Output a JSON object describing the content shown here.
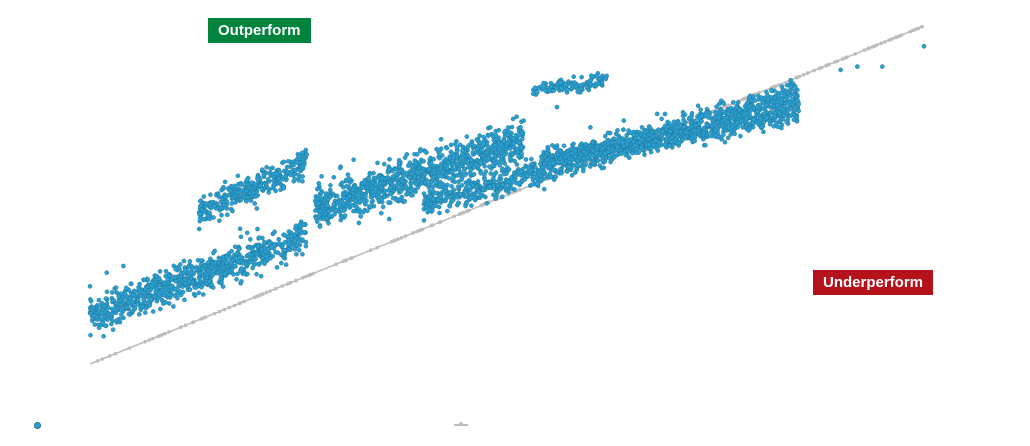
{
  "badges": {
    "outperform": {
      "text": "Outperform",
      "color": "#00843d"
    },
    "underperform": {
      "text": "Underperform",
      "color": "#b5121b"
    }
  },
  "legend": {
    "series_label": "",
    "reference_label": ""
  },
  "colors": {
    "point_fill": "#2b9fd0",
    "point_stroke": "#1d6f8f",
    "reference": "#bdbdbd"
  },
  "chart_data": {
    "type": "scatter",
    "title": "",
    "xlabel": "",
    "ylabel": "",
    "xlim": [
      0,
      100
    ],
    "ylim": [
      0,
      100
    ],
    "grid": false,
    "axes_visible": false,
    "legend_position": "bottom-left",
    "reference_line": {
      "from": [
        0,
        0
      ],
      "to": [
        100,
        100
      ],
      "style": "gray line with dots"
    },
    "approx_total_points": 4000,
    "clusters": [
      {
        "name": "",
        "x_range": [
          0,
          26
        ],
        "y_center_start": 14,
        "y_center_end": 38,
        "spread": 5
      },
      {
        "name": "",
        "x_range": [
          13,
          26
        ],
        "y_center_start": 45,
        "y_center_end": 59,
        "spread": 4
      },
      {
        "name": "",
        "x_range": [
          27,
          52
        ],
        "y_center_start": 46,
        "y_center_end": 66,
        "spread": 6
      },
      {
        "name": "",
        "x_range": [
          40,
          85
        ],
        "y_center_start": 47,
        "y_center_end": 80,
        "spread": 4
      },
      {
        "name": "",
        "x_range": [
          54,
          85
        ],
        "y_center_start": 60,
        "y_center_end": 74,
        "spread": 3
      },
      {
        "name": "",
        "x_range": [
          53,
          62
        ],
        "y_center_start": 81,
        "y_center_end": 84,
        "spread": 2
      }
    ],
    "sample_points": [
      [
        0,
        23
      ],
      [
        2,
        27
      ],
      [
        4,
        29
      ],
      [
        8,
        26
      ],
      [
        10,
        17
      ],
      [
        12,
        22
      ],
      [
        15,
        30
      ],
      [
        18,
        40
      ],
      [
        20,
        46
      ],
      [
        22,
        52
      ],
      [
        24,
        56
      ],
      [
        26,
        62
      ],
      [
        30,
        58
      ],
      [
        32,
        50
      ],
      [
        35,
        55
      ],
      [
        38,
        62
      ],
      [
        40,
        60
      ],
      [
        44,
        64
      ],
      [
        48,
        70
      ],
      [
        52,
        72
      ],
      [
        56,
        76
      ],
      [
        60,
        70
      ],
      [
        64,
        72
      ],
      [
        68,
        74
      ],
      [
        72,
        73
      ],
      [
        76,
        77
      ],
      [
        80,
        76
      ],
      [
        84,
        82
      ],
      [
        58,
        85
      ],
      [
        60,
        84
      ],
      [
        90,
        87
      ],
      [
        92,
        88
      ],
      [
        95,
        88
      ],
      [
        100,
        94
      ]
    ]
  }
}
